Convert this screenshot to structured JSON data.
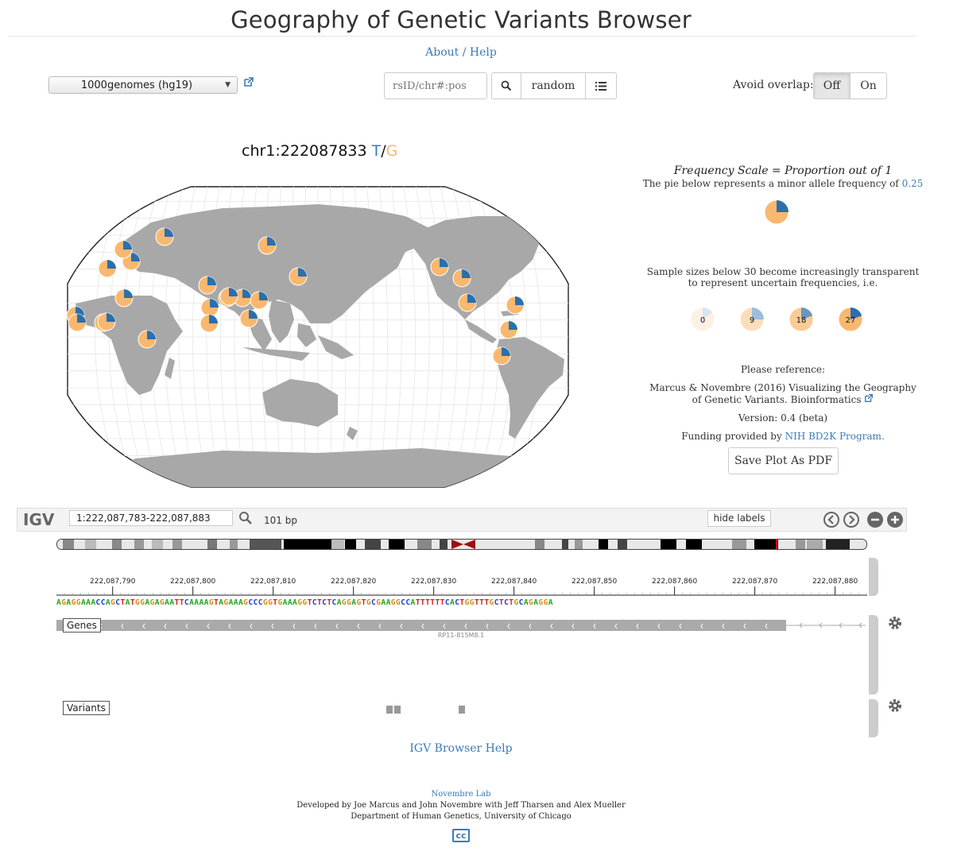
{
  "header": {
    "title": "Geography of Genetic Variants Browser",
    "about_link": "About / Help"
  },
  "controls": {
    "dataset_selected": "1000genomes (hg19)",
    "search_placeholder": "rsID/chr#:pos",
    "random_label": "random",
    "avoid_overlap_label": "Avoid overlap:",
    "off_label": "Off",
    "on_label": "On",
    "avoid_overlap_active": "Off"
  },
  "variant": {
    "position": "chr1:222087833",
    "ancestral": "T",
    "separator": "/",
    "derived": "G",
    "ancestral_color": "#3b7ab8",
    "derived_color": "#f9b86f"
  },
  "legend": {
    "title": "Frequency Scale = Proportion out of 1",
    "pie_desc": "The pie below represents a minor allele frequency of",
    "pie_value": "0.25",
    "example_freq": 0.25,
    "sample_size_text": "Sample sizes below 30 become increasingly transparent to represent uncertain frequencies, i.e.",
    "sample_examples": [
      {
        "n": "0",
        "freq": 0.15
      },
      {
        "n": "9",
        "freq": 0.25
      },
      {
        "n": "18",
        "freq": 0.2
      },
      {
        "n": "27",
        "freq": 0.2
      }
    ],
    "reference_heading": "Please reference:",
    "reference_text": "Marcus & Novembre (2016) Visualizing the Geography of Genetic Variants. Bioinformatics",
    "version": "Version: 0.4 (beta)",
    "funding_prefix": "Funding provided by",
    "funding_link": "NIH BD2K Program.",
    "save_button": "Save Plot As PDF"
  },
  "colors": {
    "minor_allele": "#2b6fae",
    "major_allele": "#f9b86f",
    "land": "#a8a8a8",
    "link": "#3b7ab8"
  },
  "igv": {
    "logo": "IGV",
    "locus": "1:222,087,783-222,087,883",
    "bp_label": "101 bp",
    "hide_labels": "hide labels",
    "ruler_ticks": [
      "222,087,790",
      "222,087,800",
      "222,087,810",
      "222,087,820",
      "222,087,830",
      "222,087,840",
      "222,087,850",
      "222,087,860",
      "222,087,870",
      "222,087,880"
    ],
    "sequence": "AGAGGAAACCAGCTATGGAGAGAATTCAAAAGTAGAAAGCCCGGTGAAAGGTCTCTCAGGAGTGCGAAGGCCATTTTTTCACTGGTTTGCTCTGCAGAGGA",
    "genes_track": "Genes",
    "gene_name": "RP11-815M8.1",
    "variants_track": "Variants",
    "help_link": "IGV Browser Help"
  },
  "footer": {
    "lab": "Novembre Lab",
    "developers": "Developed by Joe Marcus and John Novembre with Jeff Tharsen and Alex Mueller",
    "department": "Department of Human Genetics, University of Chicago",
    "license_icon": "cc"
  },
  "populations": [
    {
      "name": "pop-britain",
      "freq": 0.25
    },
    {
      "name": "pop-finland",
      "freq": 0.25
    },
    {
      "name": "pop-iberia",
      "freq": 0.25
    },
    {
      "name": "pop-tuscany",
      "freq": 0.25
    },
    {
      "name": "pop-utah",
      "freq": 0.25
    },
    {
      "name": "pop-gambia",
      "freq": 0.25
    },
    {
      "name": "pop-mende",
      "freq": 0.25
    },
    {
      "name": "pop-esan",
      "freq": 0.25
    },
    {
      "name": "pop-yoruba",
      "freq": 0.25
    },
    {
      "name": "pop-luhya",
      "freq": 0.25
    },
    {
      "name": "pop-punjabi",
      "freq": 0.25
    },
    {
      "name": "pop-gujarati",
      "freq": 0.25
    },
    {
      "name": "pop-telugu",
      "freq": 0.25
    },
    {
      "name": "pop-tamil",
      "freq": 0.25
    },
    {
      "name": "pop-bengali",
      "freq": 0.25
    },
    {
      "name": "pop-dai",
      "freq": 0.25
    },
    {
      "name": "pop-kinh",
      "freq": 0.25
    },
    {
      "name": "pop-han-south",
      "freq": 0.25
    },
    {
      "name": "pop-han-north",
      "freq": 0.25
    },
    {
      "name": "pop-japan",
      "freq": 0.25
    },
    {
      "name": "pop-mexico",
      "freq": 0.25
    },
    {
      "name": "pop-asw",
      "freq": 0.25
    },
    {
      "name": "pop-acb",
      "freq": 0.25
    },
    {
      "name": "pop-puerto-rico",
      "freq": 0.25
    },
    {
      "name": "pop-colombia",
      "freq": 0.25
    },
    {
      "name": "pop-peru",
      "freq": 0.25
    }
  ]
}
